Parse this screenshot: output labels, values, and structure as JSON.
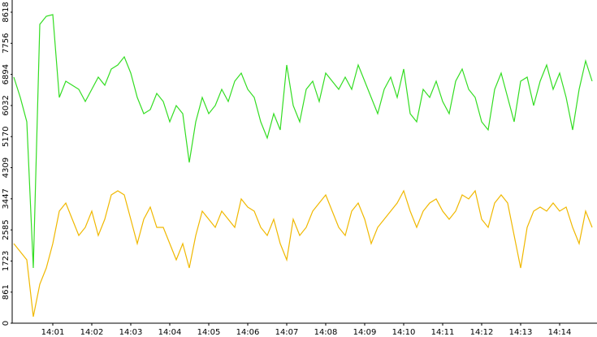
{
  "chart_data": {
    "type": "line",
    "categories": [
      null,
      null,
      null,
      null,
      null,
      null,
      "14:01",
      null,
      null,
      null,
      null,
      null,
      "14:02",
      null,
      null,
      null,
      null,
      null,
      "14:03",
      null,
      null,
      null,
      null,
      null,
      "14:04",
      null,
      null,
      null,
      null,
      null,
      "14:05",
      null,
      null,
      null,
      null,
      null,
      "14:06",
      null,
      null,
      null,
      null,
      null,
      "14:07",
      null,
      null,
      null,
      null,
      null,
      "14:08",
      null,
      null,
      null,
      null,
      null,
      "14:09",
      null,
      null,
      null,
      null,
      null,
      "14:10",
      null,
      null,
      null,
      null,
      null,
      "14:11",
      null,
      null,
      null,
      null,
      null,
      "14:12",
      null,
      null,
      null,
      null,
      null,
      "14:13",
      null,
      null,
      null,
      null,
      null,
      "14:14",
      null,
      null,
      null,
      null,
      null
    ],
    "series": [
      {
        "color": "#33dd22",
        "values": [
          6818,
          6255,
          5580,
          1530,
          8280,
          8505,
          8550,
          6255,
          6705,
          6593,
          6480,
          6143,
          6480,
          6818,
          6593,
          7043,
          7155,
          7380,
          6930,
          6255,
          5805,
          5918,
          6368,
          6143,
          5580,
          6030,
          5805,
          4455,
          5580,
          6255,
          5805,
          6030,
          6480,
          6143,
          6705,
          6930,
          6480,
          6255,
          5580,
          5130,
          5805,
          5355,
          7155,
          6030,
          5580,
          6480,
          6705,
          6143,
          6930,
          6705,
          6480,
          6818,
          6480,
          7155,
          6705,
          6255,
          5805,
          6480,
          6818,
          6255,
          7043,
          5805,
          5580,
          6480,
          6255,
          6705,
          6143,
          5805,
          6705,
          7043,
          6480,
          6255,
          5580,
          5355,
          6480,
          6930,
          6255,
          5580,
          6705,
          6818,
          6030,
          6705,
          7155,
          6480,
          6930,
          6255,
          5355,
          6480,
          7268,
          6705
        ]
      },
      {
        "color": "#f0b800",
        "values": [
          2205,
          1980,
          1755,
          180,
          1080,
          1530,
          2205,
          3105,
          3330,
          2880,
          2430,
          2655,
          3105,
          2430,
          2880,
          3555,
          3668,
          3555,
          2880,
          2205,
          2880,
          3218,
          2655,
          2655,
          2205,
          1755,
          2205,
          1530,
          2430,
          3105,
          2880,
          2655,
          3105,
          2880,
          2655,
          3443,
          3218,
          3105,
          2655,
          2430,
          2880,
          2205,
          1755,
          2880,
          2430,
          2655,
          3105,
          3330,
          3555,
          3105,
          2655,
          2430,
          3105,
          3330,
          2880,
          2205,
          2655,
          2880,
          3105,
          3330,
          3668,
          3105,
          2655,
          3105,
          3330,
          3443,
          3105,
          2880,
          3105,
          3555,
          3443,
          3668,
          2880,
          2655,
          3330,
          3555,
          3330,
          2430,
          1530,
          2655,
          3105,
          3218,
          3105,
          3330,
          3105,
          3218,
          2655,
          2205,
          3105,
          2655
        ]
      }
    ],
    "ylim": [
      0,
      8618
    ],
    "yticks": [
      0,
      861,
      1723,
      2585,
      3447,
      4309,
      5170,
      6032,
      6894,
      7756,
      8618
    ]
  }
}
